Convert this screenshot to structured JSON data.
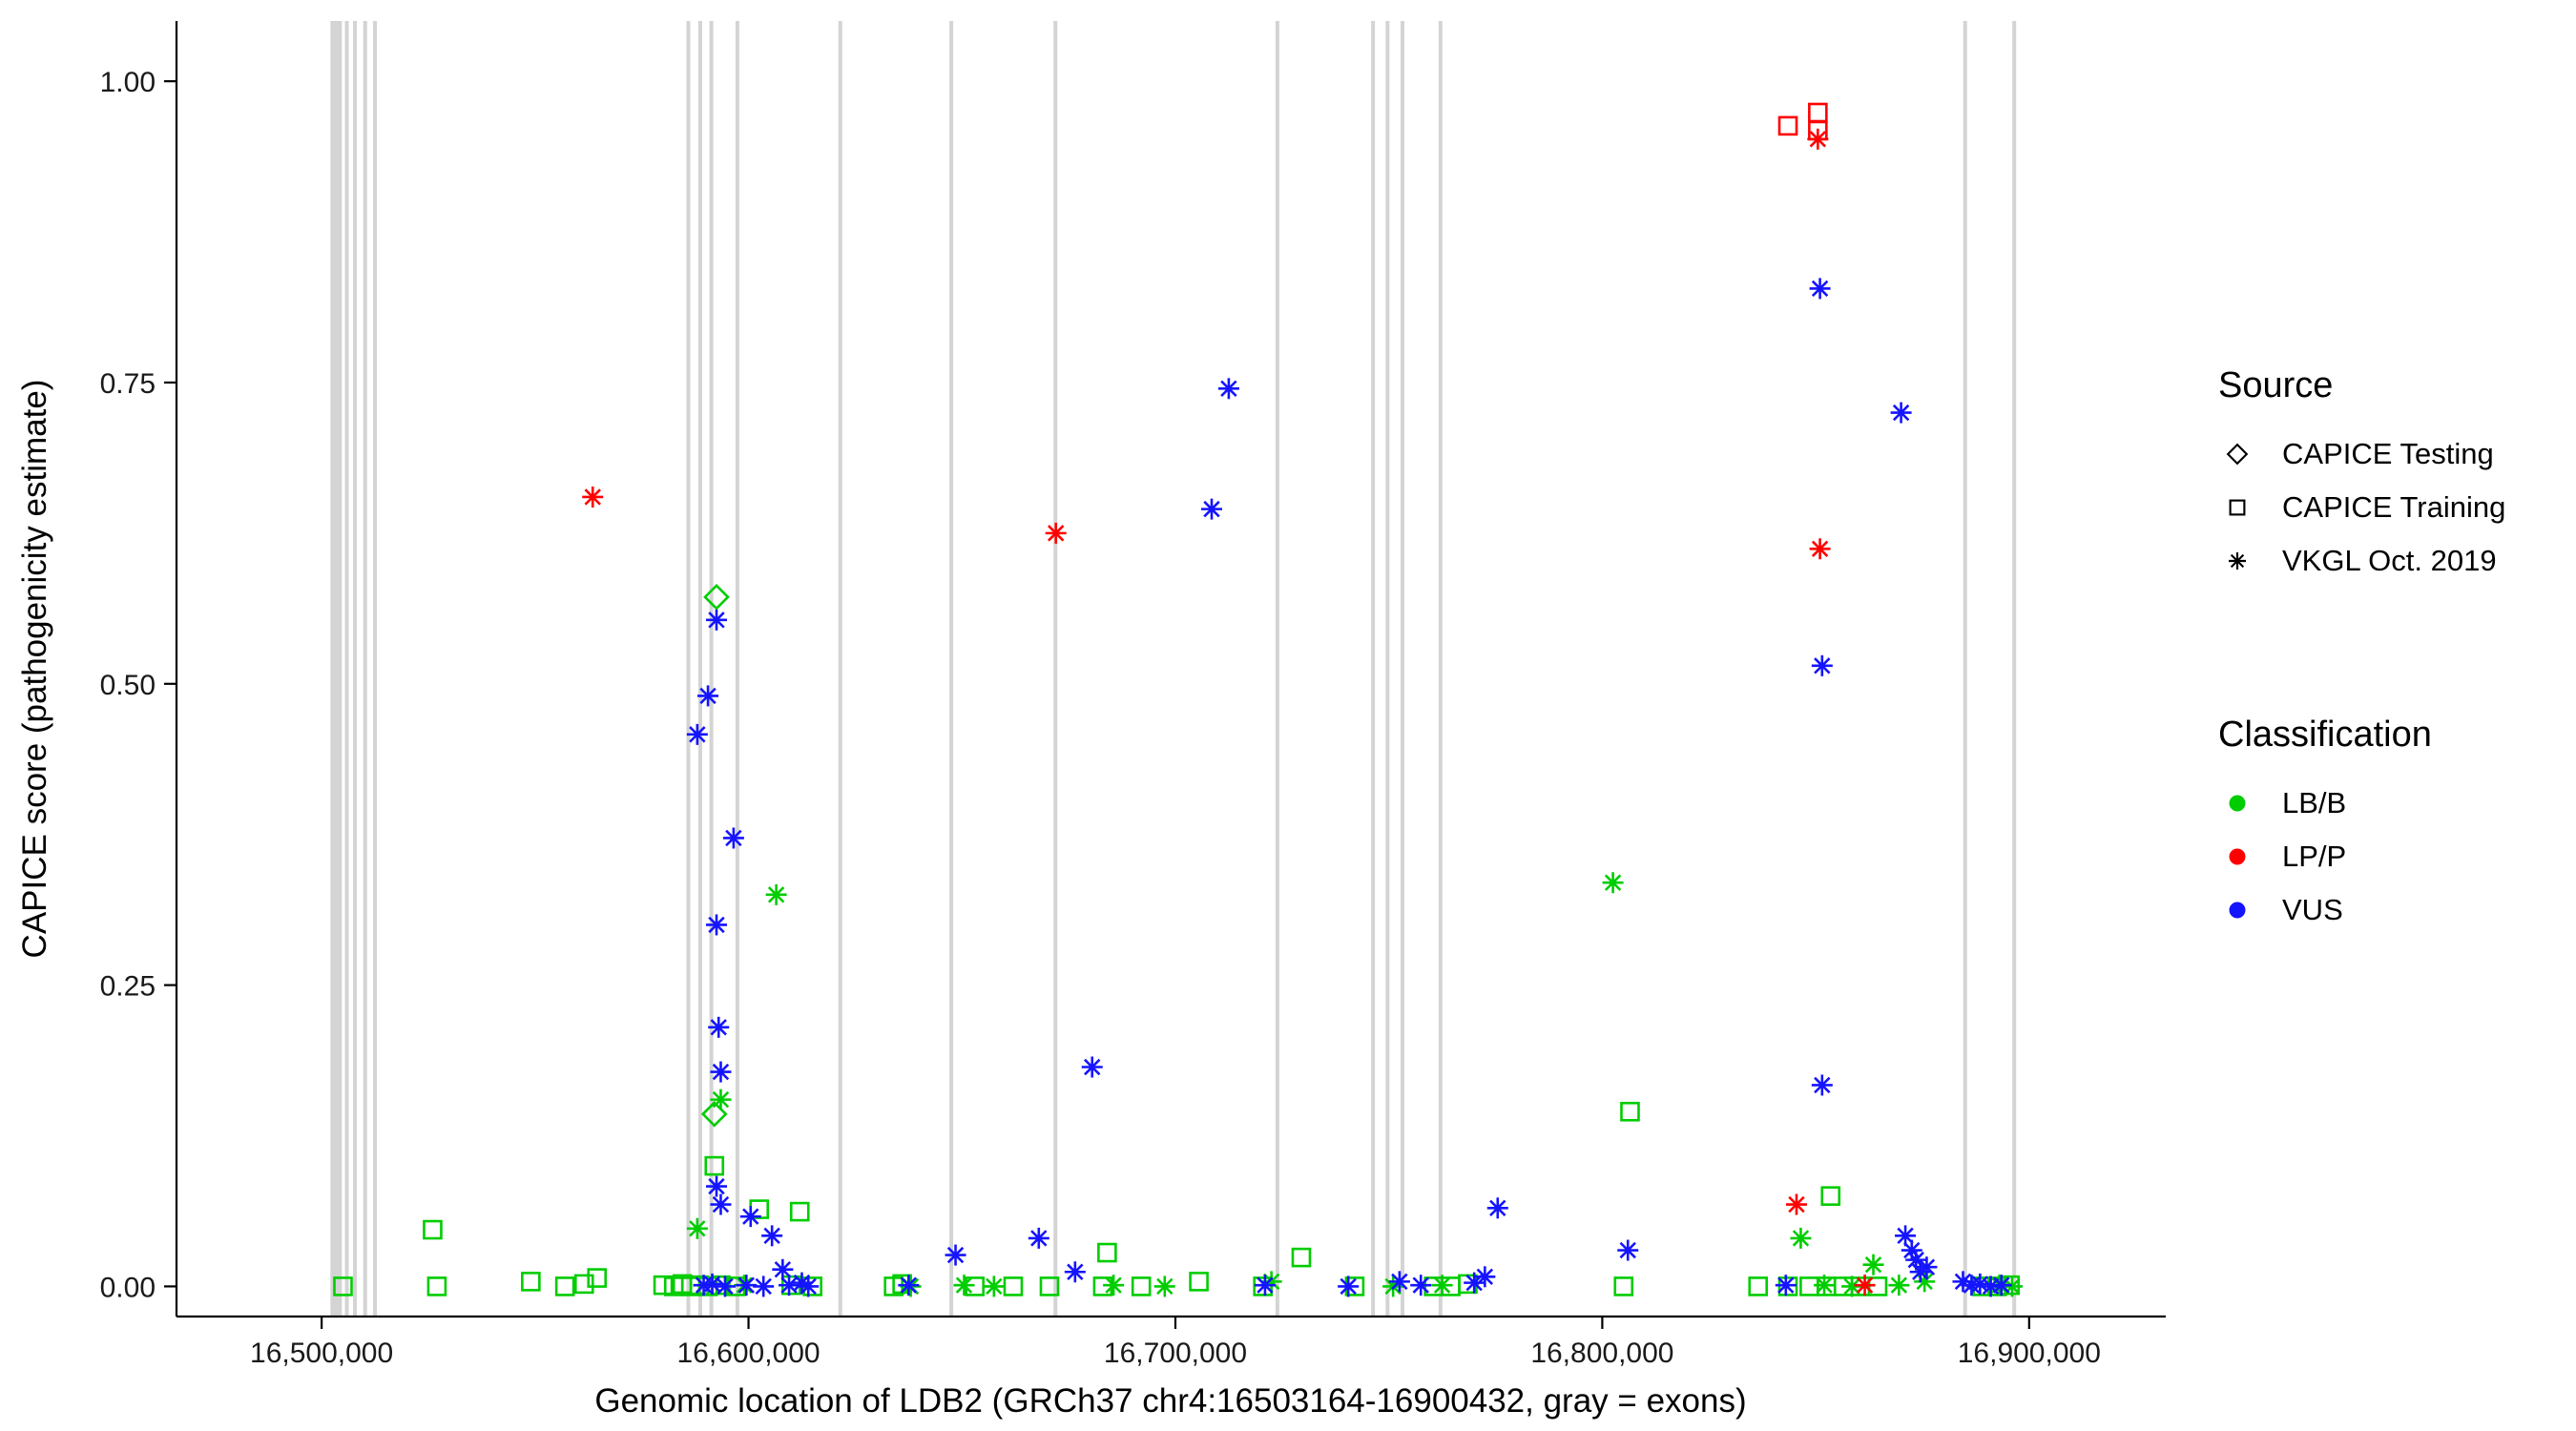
{
  "chart_data": {
    "type": "scatter",
    "title": "",
    "xlabel": "Genomic location of LDB2 (GRCh37 chr4:16503164-16900432, gray = exons)",
    "ylabel": "CAPICE score (pathogenicity estimate)",
    "xlim": [
      16466000,
      16932000
    ],
    "ylim": [
      -0.025,
      1.05
    ],
    "grid": false,
    "legend_position": "right",
    "x_ticks": {
      "values": [
        16500000,
        16600000,
        16700000,
        16800000,
        16900000
      ],
      "labels": [
        "16,500,000",
        "16,600,000",
        "16,700,000",
        "16,800,000",
        "16,900,000"
      ]
    },
    "y_ticks": {
      "values": [
        0,
        0.25,
        0.5,
        0.75,
        1.0
      ],
      "labels": [
        "0.00",
        "0.25",
        "0.50",
        "0.75",
        "1.00"
      ]
    },
    "exon_color": "#d4d4d4",
    "exons": [
      [
        16503400,
        12
      ],
      [
        16505900,
        4
      ],
      [
        16507800,
        4
      ],
      [
        16510200,
        4
      ],
      [
        16512500,
        4
      ],
      [
        16585900,
        4
      ],
      [
        16588700,
        4
      ],
      [
        16591300,
        4
      ],
      [
        16597400,
        4
      ],
      [
        16621500,
        4
      ],
      [
        16647500,
        4
      ],
      [
        16671900,
        4
      ],
      [
        16723900,
        4
      ],
      [
        16746300,
        4
      ],
      [
        16749700,
        4
      ],
      [
        16753200,
        4
      ],
      [
        16762100,
        4
      ],
      [
        16885000,
        4
      ],
      [
        16896500,
        4
      ]
    ],
    "legend": {
      "source": {
        "title": "Source",
        "items": [
          {
            "label": "CAPICE Testing",
            "shape": "diamond"
          },
          {
            "label": "CAPICE Training",
            "shape": "square"
          },
          {
            "label": "VKGL Oct. 2019",
            "shape": "asterisk"
          }
        ]
      },
      "classification": {
        "title": "Classification",
        "items": [
          {
            "label": "LB/B",
            "color": "#00cd00"
          },
          {
            "label": "LP/P",
            "color": "#ff0000"
          },
          {
            "label": "VUS",
            "color": "#1414ff"
          }
        ]
      }
    },
    "series": [
      {
        "name": "CAPICE Testing / LB/B",
        "source": "CAPICE Testing",
        "classification": "LB/B",
        "shape": "diamond",
        "color": "#00cd00",
        "points": [
          [
            16592500,
            0.572
          ],
          [
            16592000,
            0.143
          ]
        ]
      },
      {
        "name": "CAPICE Training / LB/B",
        "source": "CAPICE Training",
        "classification": "LB/B",
        "shape": "square",
        "color": "#00cd00",
        "points": [
          [
            16505000,
            0.0
          ],
          [
            16526000,
            0.047
          ],
          [
            16527000,
            0.0
          ],
          [
            16549000,
            0.004
          ],
          [
            16557000,
            0.0
          ],
          [
            16561500,
            0.002
          ],
          [
            16564500,
            0.007
          ],
          [
            16580000,
            0.001
          ],
          [
            16582500,
            0.0
          ],
          [
            16584500,
            0.002
          ],
          [
            16586500,
            0.0
          ],
          [
            16588500,
            0.001
          ],
          [
            16590500,
            0.0
          ],
          [
            16592000,
            0.1
          ],
          [
            16593500,
            0.001
          ],
          [
            16597000,
            0.0
          ],
          [
            16602500,
            0.064
          ],
          [
            16610000,
            0.001
          ],
          [
            16612000,
            0.062
          ],
          [
            16615000,
            0.0
          ],
          [
            16634000,
            0.0
          ],
          [
            16636000,
            0.002
          ],
          [
            16653000,
            0.0
          ],
          [
            16662000,
            0.0
          ],
          [
            16670500,
            0.0
          ],
          [
            16683000,
            0.0
          ],
          [
            16684000,
            0.028
          ],
          [
            16692000,
            0.0
          ],
          [
            16705500,
            0.004
          ],
          [
            16720500,
            0.0
          ],
          [
            16729500,
            0.024
          ],
          [
            16742000,
            0.0
          ],
          [
            16760500,
            0.0
          ],
          [
            16764500,
            0.0
          ],
          [
            16768500,
            0.002
          ],
          [
            16805000,
            0.0
          ],
          [
            16806500,
            0.145
          ],
          [
            16836500,
            0.0
          ],
          [
            16843500,
            0.0
          ],
          [
            16848500,
            0.0
          ],
          [
            16852500,
            0.0
          ],
          [
            16853500,
            0.075
          ],
          [
            16856500,
            0.0
          ],
          [
            16860500,
            0.0
          ],
          [
            16864500,
            0.0
          ],
          [
            16889000,
            0.0
          ],
          [
            16892500,
            0.0
          ],
          [
            16895500,
            0.001
          ]
        ]
      },
      {
        "name": "CAPICE Training / LP/P",
        "source": "CAPICE Training",
        "classification": "LP/P",
        "shape": "square",
        "color": "#ff0000",
        "points": [
          [
            16843500,
            0.963
          ],
          [
            16850500,
            0.974
          ],
          [
            16850500,
            0.959
          ]
        ]
      },
      {
        "name": "VKGL Oct. 2019 / LB/B",
        "source": "VKGL Oct. 2019",
        "classification": "LB/B",
        "shape": "asterisk",
        "color": "#00cd00",
        "points": [
          [
            16588000,
            0.048
          ],
          [
            16593500,
            0.155
          ],
          [
            16606500,
            0.325
          ],
          [
            16599000,
            0.001
          ],
          [
            16638000,
            0.0
          ],
          [
            16650500,
            0.001
          ],
          [
            16657500,
            0.0
          ],
          [
            16685500,
            0.001
          ],
          [
            16697500,
            0.0
          ],
          [
            16722500,
            0.004
          ],
          [
            16751000,
            0.0
          ],
          [
            16762500,
            0.001
          ],
          [
            16802500,
            0.335
          ],
          [
            16846500,
            0.04
          ],
          [
            16852000,
            0.001
          ],
          [
            16858500,
            0.0
          ],
          [
            16863500,
            0.018
          ],
          [
            16869500,
            0.001
          ],
          [
            16875500,
            0.004
          ],
          [
            16893000,
            0.001
          ],
          [
            16896000,
            0.0
          ]
        ]
      },
      {
        "name": "VKGL Oct. 2019 / LP/P",
        "source": "VKGL Oct. 2019",
        "classification": "LP/P",
        "shape": "asterisk",
        "color": "#ff0000",
        "points": [
          [
            16563500,
            0.655
          ],
          [
            16672000,
            0.625
          ],
          [
            16850500,
            0.952
          ],
          [
            16851000,
            0.612
          ],
          [
            16845500,
            0.068
          ],
          [
            16861500,
            0.001
          ]
        ]
      },
      {
        "name": "VKGL Oct. 2019 / VUS",
        "source": "VKGL Oct. 2019",
        "classification": "VUS",
        "shape": "asterisk",
        "color": "#1414ff",
        "points": [
          [
            16592500,
            0.553
          ],
          [
            16590500,
            0.49
          ],
          [
            16588000,
            0.458
          ],
          [
            16596500,
            0.372
          ],
          [
            16592500,
            0.3
          ],
          [
            16593000,
            0.215
          ],
          [
            16593500,
            0.178
          ],
          [
            16592500,
            0.083
          ],
          [
            16593500,
            0.068
          ],
          [
            16600500,
            0.058
          ],
          [
            16605500,
            0.042
          ],
          [
            16589500,
            0.001
          ],
          [
            16591500,
            0.002
          ],
          [
            16594500,
            0.0
          ],
          [
            16599500,
            0.001
          ],
          [
            16603500,
            0.0
          ],
          [
            16608000,
            0.014
          ],
          [
            16609500,
            0.001
          ],
          [
            16612500,
            0.003
          ],
          [
            16614000,
            0.0
          ],
          [
            16637500,
            0.001
          ],
          [
            16648500,
            0.026
          ],
          [
            16668000,
            0.04
          ],
          [
            16676500,
            0.012
          ],
          [
            16680500,
            0.182
          ],
          [
            16708500,
            0.645
          ],
          [
            16712500,
            0.745
          ],
          [
            16721000,
            0.001
          ],
          [
            16740500,
            0.0
          ],
          [
            16752500,
            0.004
          ],
          [
            16757500,
            0.001
          ],
          [
            16770000,
            0.003
          ],
          [
            16772500,
            0.008
          ],
          [
            16775500,
            0.065
          ],
          [
            16806000,
            0.03
          ],
          [
            16843000,
            0.001
          ],
          [
            16851000,
            0.828
          ],
          [
            16851500,
            0.515
          ],
          [
            16851500,
            0.167
          ],
          [
            16870000,
            0.725
          ],
          [
            16871000,
            0.042
          ],
          [
            16872500,
            0.03
          ],
          [
            16873500,
            0.022
          ],
          [
            16874500,
            0.012
          ],
          [
            16876000,
            0.016
          ],
          [
            16884500,
            0.004
          ],
          [
            16886500,
            0.001
          ],
          [
            16888500,
            0.002
          ],
          [
            16891000,
            0.0
          ],
          [
            16893500,
            0.001
          ]
        ]
      }
    ]
  }
}
